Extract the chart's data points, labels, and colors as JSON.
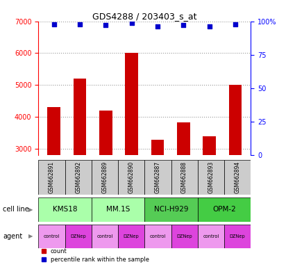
{
  "title": "GDS4288 / 203403_s_at",
  "samples": [
    "GSM662891",
    "GSM662892",
    "GSM662889",
    "GSM662890",
    "GSM662887",
    "GSM662888",
    "GSM662893",
    "GSM662894"
  ],
  "counts": [
    4300,
    5200,
    4200,
    6020,
    3280,
    3820,
    3380,
    5000
  ],
  "percentile_ranks": [
    98,
    98,
    97,
    99,
    96,
    97,
    96,
    98
  ],
  "cell_lines": [
    {
      "name": "KMS18",
      "start": 0,
      "end": 2
    },
    {
      "name": "MM.1S",
      "start": 2,
      "end": 4
    },
    {
      "name": "NCI-H929",
      "start": 4,
      "end": 6
    },
    {
      "name": "OPM-2",
      "start": 6,
      "end": 8
    }
  ],
  "agents": [
    "control",
    "DZNep",
    "control",
    "DZNep",
    "control",
    "DZNep",
    "control",
    "DZNep"
  ],
  "bar_color": "#cc0000",
  "dot_color": "#0000cc",
  "ylim_left": [
    2800,
    7000
  ],
  "ylim_right": [
    0,
    100
  ],
  "yticks_left": [
    3000,
    4000,
    5000,
    6000,
    7000
  ],
  "yticks_right": [
    0,
    25,
    50,
    75,
    100
  ],
  "cell_line_colors": [
    "#aaffaa",
    "#aaffaa",
    "#55cc55",
    "#44cc44"
  ],
  "agent_colors": {
    "control": "#ee99ee",
    "DZNep": "#dd44dd"
  },
  "sample_bg_color": "#cccccc",
  "grid_color": "#555555",
  "legend_count": "count",
  "legend_pct": "percentile rank within the sample"
}
